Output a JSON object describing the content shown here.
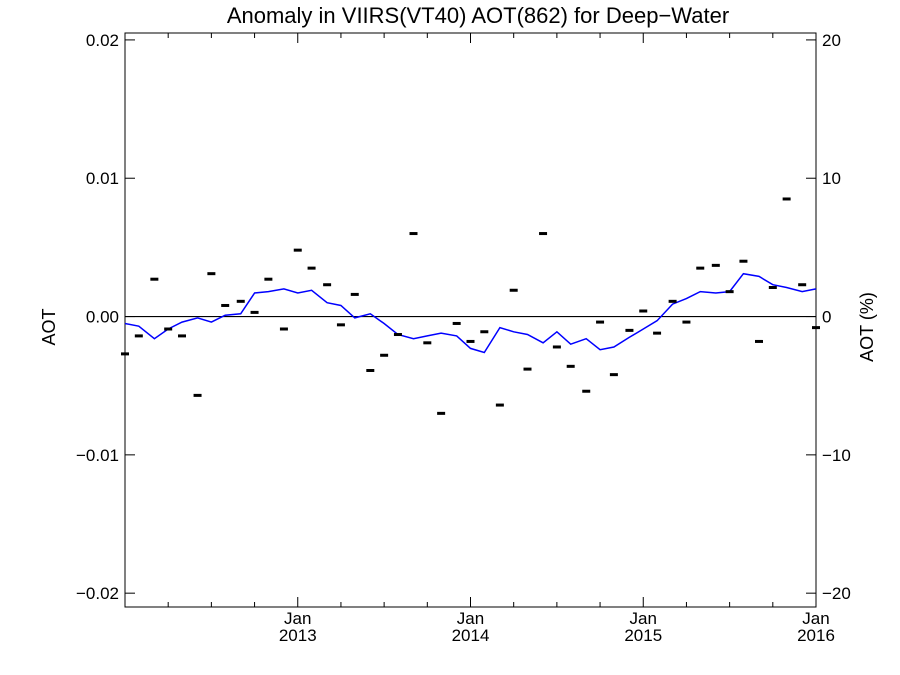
{
  "chart_data": {
    "type": "line",
    "title": "Anomaly in VIIRS(VT40) AOT(862) for Deep−Water",
    "ylabel": "AOT",
    "y2label": "AOT (%)",
    "ylim": [
      -0.021,
      0.0205
    ],
    "y2lim": [
      -21.0,
      20.5
    ],
    "xlim": [
      2012.0,
      2016.0
    ],
    "yticks": [
      -0.02,
      -0.01,
      0.0,
      0.01,
      0.02
    ],
    "ytick_labels": [
      "−0.02",
      "−0.01",
      "0.00",
      "0.01",
      "0.02"
    ],
    "y2ticks": [
      -20,
      -10,
      0,
      10,
      20
    ],
    "y2tick_labels": [
      "−20",
      "−10",
      "0",
      "10",
      "20"
    ],
    "xticks": [
      {
        "x": 2013.0,
        "label1": "Jan",
        "label2": "2013"
      },
      {
        "x": 2014.0,
        "label1": "Jan",
        "label2": "2014"
      },
      {
        "x": 2015.0,
        "label1": "Jan",
        "label2": "2015"
      },
      {
        "x": 2016.0,
        "label1": "Jan",
        "label2": "2016"
      }
    ],
    "zero_line": true,
    "grid": false,
    "series": [
      {
        "style": "line",
        "color": "#0000ff",
        "x": [
          2012.0,
          2012.08,
          2012.17,
          2012.25,
          2012.33,
          2012.42,
          2012.5,
          2012.58,
          2012.67,
          2012.75,
          2012.83,
          2012.92,
          2013.0,
          2013.08,
          2013.17,
          2013.25,
          2013.33,
          2013.42,
          2013.5,
          2013.58,
          2013.67,
          2013.75,
          2013.83,
          2013.92,
          2014.0,
          2014.08,
          2014.17,
          2014.25,
          2014.33,
          2014.42,
          2014.5,
          2014.58,
          2014.67,
          2014.75,
          2014.83,
          2014.92,
          2015.0,
          2015.08,
          2015.17,
          2015.25,
          2015.33,
          2015.42,
          2015.5,
          2015.58,
          2015.67,
          2015.75,
          2015.83,
          2015.92,
          2016.0
        ],
        "y": [
          -0.0005,
          -0.0007,
          -0.0016,
          -0.0009,
          -0.0004,
          -0.0001,
          -0.0004,
          0.0001,
          0.0002,
          0.0017,
          0.0018,
          0.002,
          0.0017,
          0.0019,
          0.001,
          0.0008,
          -0.0001,
          0.0002,
          -0.0005,
          -0.0013,
          -0.0016,
          -0.0014,
          -0.0012,
          -0.0014,
          -0.0023,
          -0.0026,
          -0.0008,
          -0.0011,
          -0.0013,
          -0.0019,
          -0.0011,
          -0.002,
          -0.0016,
          -0.0024,
          -0.0022,
          -0.0015,
          -0.0009,
          -0.0003,
          0.0009,
          0.0013,
          0.0018,
          0.0017,
          0.0018,
          0.0031,
          0.0029,
          0.0023,
          0.0021,
          0.0018,
          0.002
        ]
      },
      {
        "style": "dash-marker",
        "color": "#000000",
        "x": [
          2012.0,
          2012.08,
          2012.17,
          2012.25,
          2012.33,
          2012.42,
          2012.5,
          2012.58,
          2012.67,
          2012.75,
          2012.83,
          2012.92,
          2013.0,
          2013.08,
          2013.17,
          2013.25,
          2013.33,
          2013.42,
          2013.5,
          2013.58,
          2013.67,
          2013.75,
          2013.83,
          2013.92,
          2014.0,
          2014.08,
          2014.17,
          2014.25,
          2014.33,
          2014.42,
          2014.5,
          2014.58,
          2014.67,
          2014.75,
          2014.83,
          2014.92,
          2015.0,
          2015.08,
          2015.17,
          2015.25,
          2015.33,
          2015.42,
          2015.5,
          2015.58,
          2015.67,
          2015.75,
          2015.83,
          2015.92,
          2016.0
        ],
        "y": [
          -0.0027,
          -0.0014,
          0.0027,
          -0.0009,
          -0.0014,
          -0.0057,
          0.0031,
          0.0008,
          0.0011,
          0.0003,
          0.0027,
          -0.0009,
          0.0048,
          0.0035,
          0.0023,
          -0.0006,
          0.0016,
          -0.0039,
          -0.0028,
          -0.0013,
          0.006,
          -0.0019,
          -0.007,
          -0.0005,
          -0.0018,
          -0.0011,
          -0.0064,
          0.0019,
          -0.0038,
          0.006,
          -0.0022,
          -0.0036,
          -0.0054,
          -0.0004,
          -0.0042,
          -0.001,
          0.0004,
          -0.0012,
          0.0011,
          -0.0004,
          0.0035,
          0.0037,
          0.0018,
          0.004,
          -0.0018,
          0.0021,
          0.0085,
          0.0023,
          -0.0008
        ]
      }
    ]
  }
}
